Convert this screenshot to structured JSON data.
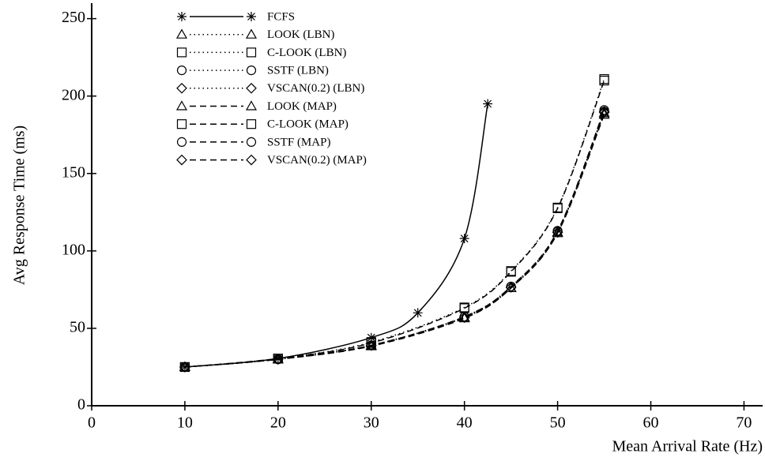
{
  "chart_data": {
    "type": "line",
    "xlabel": "Mean Arrival Rate (Hz)",
    "ylabel": "Avg Response Time (ms)",
    "xlim": [
      0,
      72
    ],
    "xticks": [
      0,
      10,
      20,
      30,
      40,
      50,
      60,
      70
    ],
    "ylim": [
      0,
      260
    ],
    "yticks": [
      0,
      50,
      100,
      150,
      200,
      250
    ],
    "grid": false,
    "legend": "upper left",
    "series": [
      {
        "name": "FCFS",
        "color": "#000000",
        "marker": "star",
        "line_style": "solid",
        "x": [
          10,
          20,
          30,
          35,
          40,
          42.5
        ],
        "values": [
          25,
          30.5,
          44,
          60,
          108,
          195
        ]
      },
      {
        "name": "LOOK (LBN)",
        "color": "#000000",
        "marker": "triangle",
        "line_style": "dotted",
        "x": [
          10,
          20,
          30,
          40,
          45,
          50,
          55
        ],
        "values": [
          25,
          30,
          39,
          57,
          76,
          112,
          189
        ]
      },
      {
        "name": "C-LOOK (LBN)",
        "color": "#000000",
        "marker": "square",
        "line_style": "dotted",
        "x": [
          10,
          20,
          30,
          40,
          45,
          50,
          55
        ],
        "values": [
          25,
          30.5,
          41,
          63.5,
          87,
          128,
          211
        ]
      },
      {
        "name": "SSTF (LBN)",
        "color": "#000000",
        "marker": "circle",
        "line_style": "dotted",
        "x": [
          10,
          20,
          30,
          40,
          45,
          50,
          55
        ],
        "values": [
          25,
          30,
          39,
          57.5,
          77,
          112.5,
          190
        ]
      },
      {
        "name": "VSCAN(0.2) (LBN)",
        "color": "#000000",
        "marker": "diamond",
        "line_style": "dotted",
        "x": [
          10,
          20,
          30,
          40,
          45,
          50,
          55
        ],
        "values": [
          25,
          30,
          39,
          57,
          76.5,
          112,
          190
        ]
      },
      {
        "name": "LOOK (MAP)",
        "color": "#000000",
        "marker": "triangle",
        "line_style": "dashed",
        "x": [
          10,
          20,
          30,
          40,
          45,
          50,
          55
        ],
        "values": [
          25,
          30,
          38.5,
          56.5,
          76,
          111.5,
          188
        ]
      },
      {
        "name": "C-LOOK (MAP)",
        "color": "#000000",
        "marker": "square",
        "line_style": "dashed",
        "x": [
          10,
          20,
          30,
          40,
          45,
          50,
          55
        ],
        "values": [
          25,
          30.5,
          40.5,
          63,
          86.5,
          127.5,
          210
        ]
      },
      {
        "name": "SSTF (MAP)",
        "color": "#000000",
        "marker": "circle",
        "line_style": "dashed",
        "x": [
          10,
          20,
          30,
          40,
          45,
          50,
          55
        ],
        "values": [
          25,
          30,
          39,
          57.5,
          77,
          113,
          191
        ]
      },
      {
        "name": "VSCAN(0.2) (MAP)",
        "color": "#000000",
        "marker": "diamond",
        "line_style": "dashed",
        "x": [
          10,
          20,
          30,
          40,
          45,
          50,
          55
        ],
        "values": [
          25,
          30,
          39,
          57,
          76.5,
          112,
          189.5
        ]
      }
    ]
  }
}
